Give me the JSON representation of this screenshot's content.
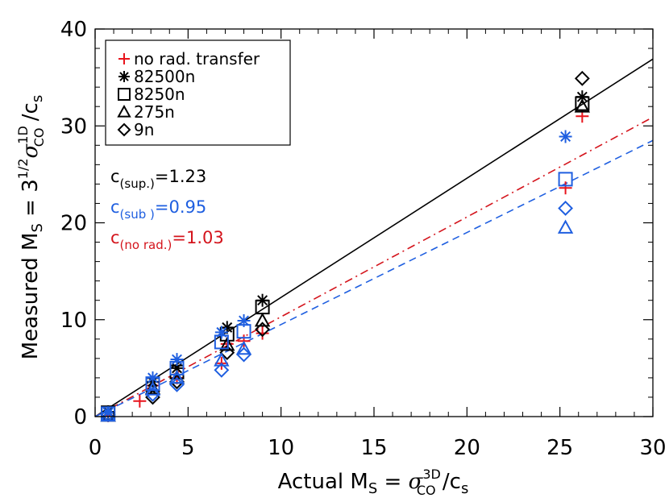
{
  "chart_data": {
    "type": "scatter",
    "xlim": [
      0,
      30
    ],
    "ylim": [
      0,
      40
    ],
    "x_ticks": [
      "0",
      "5",
      "10",
      "15",
      "20",
      "25",
      "30"
    ],
    "y_ticks": [
      "0",
      "10",
      "20",
      "30",
      "40"
    ],
    "xlabel": {
      "prefix": "Actual M",
      "sub": "S",
      "eq": " = ",
      "sigma": "σ",
      "sigma_sub": "CO",
      "sigma_sup": "3D",
      "suffix": " /c",
      "suffix_sub": "s"
    },
    "ylabel": {
      "prefix": "Measured M",
      "sub": "S",
      "eq": " = ",
      "root": "3",
      "root_sup": "1/2",
      "sigma": "σ",
      "sigma_sub": "CO",
      "sigma_sup": "1D",
      "suffix": " /c",
      "suffix_sub": "s"
    },
    "legend": {
      "placement": "top-left",
      "entries": [
        {
          "symbol": "plus",
          "color": "#e8141c",
          "label": "no rad. transfer"
        },
        {
          "symbol": "asterisk",
          "color": "#000000",
          "label": "82500n"
        },
        {
          "symbol": "square",
          "color": "#000000",
          "label": "8250n"
        },
        {
          "symbol": "triangle",
          "color": "#000000",
          "label": "275n"
        },
        {
          "symbol": "diamond",
          "color": "#000000",
          "label": "9n"
        }
      ]
    },
    "annotations": [
      {
        "c": "c",
        "sub": "(sup.)",
        "value": "=1.23",
        "color": "#000000"
      },
      {
        "c": "c",
        "sub": "(sub )",
        "value": "=0.95",
        "color": "#1f5fe0"
      },
      {
        "c": "c",
        "sub": "(no rad.)",
        "value": "=1.03",
        "color": "#d4141c"
      }
    ],
    "fit_lines": [
      {
        "name": "c(sup.)",
        "slope": 1.23,
        "color": "#000000",
        "style": "solid"
      },
      {
        "name": "c(no rad.)",
        "slope": 1.03,
        "color": "#d4141c",
        "style": "dashdot"
      },
      {
        "name": "c(sub )",
        "slope": 0.95,
        "color": "#1f5fe0",
        "style": "dashed"
      }
    ],
    "series": [
      {
        "symbol": "plus",
        "color": "#e8141c",
        "x": [
          0.7,
          2.4,
          3.1,
          4.4,
          6.8,
          7.1,
          8.0,
          9.0,
          25.3,
          26.2
        ],
        "y": [
          0.1,
          1.6,
          3.2,
          4.0,
          5.5,
          7.5,
          7.8,
          8.6,
          23.6,
          31.0
        ]
      },
      {
        "symbol": "asterisk",
        "color": "#000000",
        "x": [
          0.7,
          3.1,
          4.4,
          7.1,
          9.0,
          26.2
        ],
        "y": [
          0.5,
          3.6,
          5.0,
          9.2,
          12.0,
          33.0
        ]
      },
      {
        "symbol": "square",
        "color": "#000000",
        "x": [
          0.7,
          3.1,
          4.4,
          7.1,
          9.0,
          26.2
        ],
        "y": [
          0.4,
          3.3,
          4.6,
          8.5,
          11.3,
          32.3
        ]
      },
      {
        "symbol": "triangle",
        "color": "#000000",
        "x": [
          0.7,
          3.1,
          4.4,
          7.1,
          9.0,
          26.2
        ],
        "y": [
          0.1,
          2.9,
          4.0,
          7.4,
          9.9,
          32.0
        ]
      },
      {
        "symbol": "diamond",
        "color": "#000000",
        "x": [
          0.7,
          3.1,
          4.4,
          7.1,
          9.0,
          26.2
        ],
        "y": [
          0.2,
          2.0,
          3.6,
          6.6,
          9.0,
          34.9
        ]
      },
      {
        "symbol": "asterisk",
        "color": "#1f5fe0",
        "x": [
          0.7,
          3.1,
          4.4,
          6.8,
          8.0,
          25.3
        ],
        "y": [
          0.4,
          4.0,
          5.9,
          8.7,
          9.9,
          28.9
        ]
      },
      {
        "symbol": "square",
        "color": "#1f5fe0",
        "x": [
          0.7,
          3.1,
          4.4,
          6.8,
          8.0,
          25.3
        ],
        "y": [
          0.3,
          3.4,
          5.0,
          7.7,
          8.8,
          24.5
        ]
      },
      {
        "symbol": "triangle",
        "color": "#1f5fe0",
        "x": [
          0.7,
          3.1,
          4.4,
          6.8,
          8.0,
          25.3
        ],
        "y": [
          0.1,
          2.8,
          4.0,
          5.8,
          7.0,
          19.5
        ]
      },
      {
        "symbol": "diamond",
        "color": "#1f5fe0",
        "x": [
          0.7,
          3.1,
          4.4,
          6.8,
          8.0,
          25.3
        ],
        "y": [
          0.2,
          2.3,
          3.3,
          4.8,
          6.4,
          21.5
        ]
      }
    ]
  }
}
